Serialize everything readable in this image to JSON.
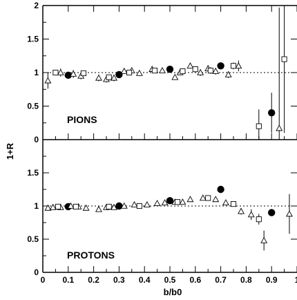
{
  "chart_data": [
    {
      "type": "scatter",
      "panel_label": "PIONS",
      "xlabel": "b/b0",
      "ylabel": "1+R",
      "xlim": [
        0,
        1.0
      ],
      "ylim": [
        0,
        2
      ],
      "yticks": [
        "0",
        "0.5",
        "1",
        "1.5",
        "2"
      ],
      "reference_line": 1,
      "series": [
        {
          "marker": "filled-circle",
          "x": [
            0.1,
            0.3,
            0.5,
            0.7,
            0.9
          ],
          "y": [
            0.96,
            0.97,
            1.05,
            1.1,
            0.4
          ],
          "err": [
            0.02,
            0.02,
            0.02,
            0.03,
            0.3
          ]
        },
        {
          "marker": "open-triangle",
          "x": [
            0.02,
            0.07,
            0.12,
            0.15,
            0.22,
            0.25,
            0.28,
            0.32,
            0.35,
            0.38,
            0.43,
            0.47,
            0.52,
            0.54,
            0.58,
            0.62,
            0.65,
            0.68,
            0.73,
            0.77,
            0.93
          ],
          "y": [
            0.88,
            1.0,
            0.98,
            0.95,
            0.92,
            0.9,
            0.92,
            1.02,
            1.03,
            0.99,
            1.05,
            1.03,
            0.93,
            1.0,
            1.1,
            1.0,
            1.06,
            1.02,
            0.97,
            1.1,
            0.17
          ],
          "err": [
            0.12,
            0.06,
            0.06,
            0.05,
            0.05,
            0.05,
            0.05,
            0.04,
            0.04,
            0.04,
            0.04,
            0.04,
            0.04,
            0.04,
            0.04,
            0.05,
            0.05,
            0.05,
            0.05,
            0.08,
            1.8
          ]
        },
        {
          "marker": "open-square",
          "x": [
            0.05,
            0.16,
            0.26,
            0.34,
            0.44,
            0.55,
            0.6,
            0.66,
            0.75,
            0.85,
            0.95
          ],
          "y": [
            1.0,
            0.99,
            0.93,
            1.0,
            1.03,
            1.02,
            1.05,
            1.03,
            1.1,
            0.2,
            1.2
          ],
          "err": [
            0.04,
            0.04,
            0.04,
            0.04,
            0.04,
            0.04,
            0.04,
            0.05,
            0.05,
            0.25,
            1.1
          ]
        }
      ]
    },
    {
      "type": "scatter",
      "panel_label": "PROTONS",
      "xlabel": "b/b0",
      "ylabel": "1+R",
      "xlim": [
        0,
        1.0
      ],
      "ylim": [
        0,
        2
      ],
      "yticks": [
        "0",
        "0.5",
        "1",
        "1.5"
      ],
      "xticks": [
        "0",
        "0.1",
        "0.2",
        "0.3",
        "0.4",
        "0.5",
        "0.6",
        "0.7",
        "0.8",
        "0.9",
        "1"
      ],
      "reference_line": 1,
      "series": [
        {
          "marker": "filled-circle",
          "x": [
            0.1,
            0.3,
            0.5,
            0.7,
            0.9
          ],
          "y": [
            0.99,
            1.0,
            1.08,
            1.25,
            0.9
          ],
          "err": [
            0.01,
            0.01,
            0.02,
            0.02,
            0.04
          ]
        },
        {
          "marker": "open-triangle",
          "x": [
            0.02,
            0.04,
            0.07,
            0.11,
            0.14,
            0.17,
            0.22,
            0.25,
            0.28,
            0.32,
            0.36,
            0.41,
            0.45,
            0.48,
            0.52,
            0.55,
            0.58,
            0.63,
            0.68,
            0.72,
            0.78,
            0.82,
            0.87,
            0.97
          ],
          "y": [
            0.97,
            0.98,
            0.98,
            1.0,
            0.99,
            0.97,
            0.95,
            0.98,
            0.98,
            1.0,
            1.02,
            1.02,
            1.04,
            1.05,
            1.06,
            1.06,
            1.1,
            1.12,
            1.1,
            1.05,
            0.92,
            0.87,
            0.48,
            0.88
          ],
          "err": [
            0.03,
            0.02,
            0.02,
            0.02,
            0.02,
            0.02,
            0.02,
            0.02,
            0.02,
            0.02,
            0.02,
            0.02,
            0.02,
            0.02,
            0.02,
            0.02,
            0.02,
            0.02,
            0.03,
            0.03,
            0.05,
            0.08,
            0.15,
            0.3
          ]
        },
        {
          "marker": "open-square",
          "x": [
            0.06,
            0.13,
            0.26,
            0.38,
            0.53,
            0.65,
            0.75,
            0.85
          ],
          "y": [
            0.99,
            0.99,
            0.99,
            1.0,
            1.06,
            1.12,
            1.03,
            0.8
          ],
          "err": [
            0.02,
            0.02,
            0.02,
            0.02,
            0.02,
            0.03,
            0.03,
            0.08
          ]
        }
      ]
    }
  ]
}
